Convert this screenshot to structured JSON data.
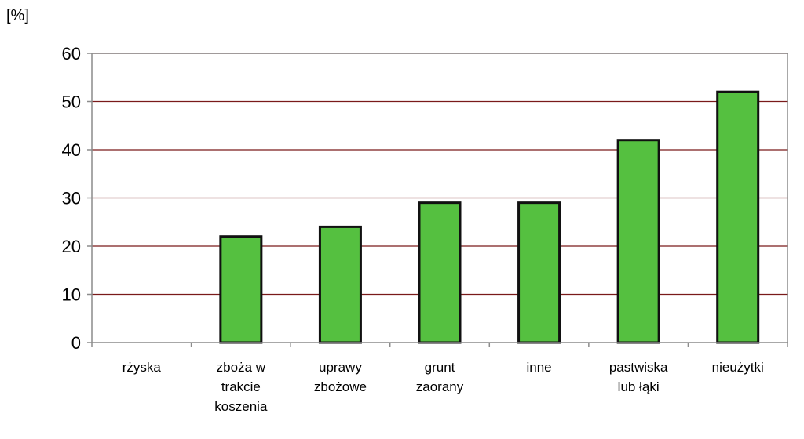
{
  "chart_data": {
    "type": "bar",
    "ylabel": "[%]",
    "categories": [
      [
        "rżyska"
      ],
      [
        "zboża w",
        "trakcie",
        "koszenia"
      ],
      [
        "uprawy",
        "zbożowe"
      ],
      [
        "grunt",
        "zaorany"
      ],
      [
        "inne"
      ],
      [
        "pastwiska",
        "lub łąki"
      ],
      [
        "nieużytki"
      ]
    ],
    "values": [
      0,
      22,
      24,
      29,
      29,
      42,
      52
    ],
    "ylim": [
      0,
      60
    ],
    "yticks": [
      0,
      10,
      20,
      30,
      40,
      50,
      60
    ],
    "grid": true,
    "legend": "none",
    "colors": {
      "bar_fill": "#55c040",
      "bar_stroke": "#111111",
      "gridline": "#7a1a1a",
      "frame": "#8c8c8c"
    }
  }
}
